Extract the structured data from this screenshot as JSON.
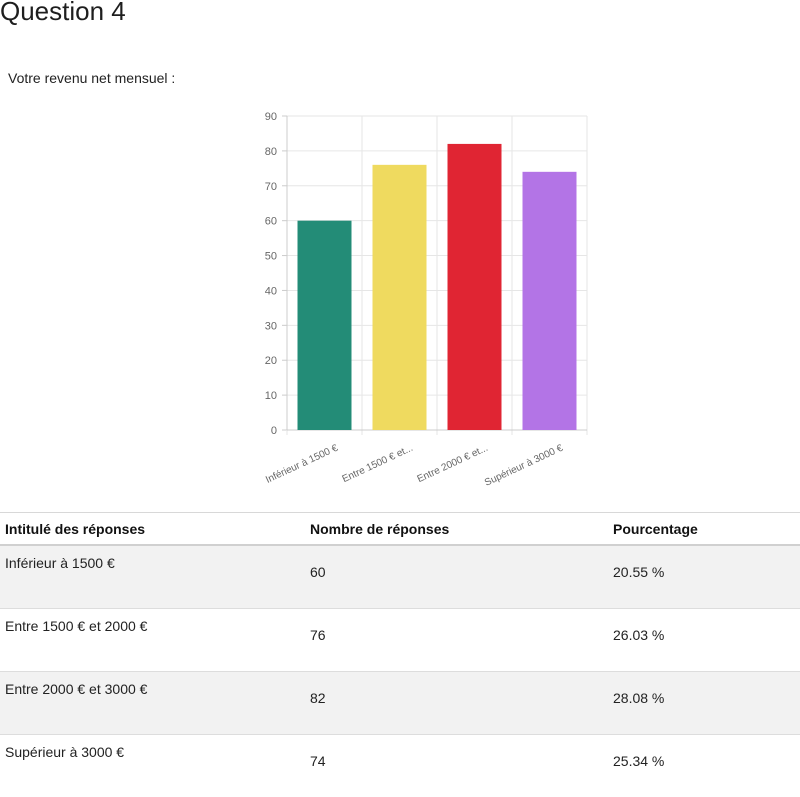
{
  "page": {
    "title": "Question 4",
    "question": "Votre revenu net mensuel :"
  },
  "chart_data": {
    "type": "bar",
    "categories": [
      "Inférieur à 1500 €",
      "Entre 1500 € et...",
      "Entre 2000 € et...",
      "Supérieur à 3000 €"
    ],
    "values": [
      60,
      76,
      82,
      74
    ],
    "colors": [
      "#238c77",
      "#efda5f",
      "#e02533",
      "#b374e6"
    ],
    "ylim": [
      0,
      90
    ],
    "yticks": [
      0,
      10,
      20,
      30,
      40,
      50,
      60,
      70,
      80,
      90
    ],
    "grid": true,
    "title": "",
    "xlabel": "",
    "ylabel": ""
  },
  "table": {
    "headers": [
      "Intitulé des réponses",
      "Nombre de réponses",
      "Pourcentage"
    ],
    "rows": [
      {
        "label": "Inférieur à 1500 €",
        "count": "60",
        "percent": "20.55 %"
      },
      {
        "label": "Entre 1500 € et 2000 €",
        "count": "76",
        "percent": "26.03 %"
      },
      {
        "label": "Entre 2000 € et 3000 €",
        "count": "82",
        "percent": "28.08 %"
      },
      {
        "label": "Supérieur à 3000 €",
        "count": "74",
        "percent": "25.34 %"
      }
    ]
  }
}
